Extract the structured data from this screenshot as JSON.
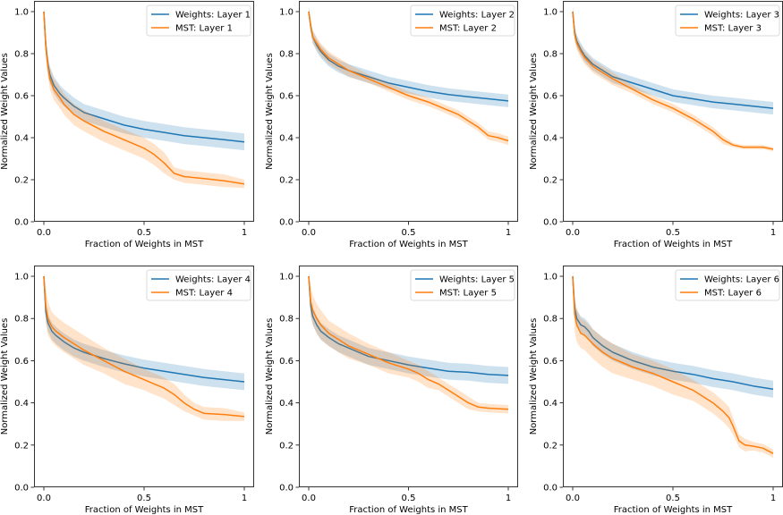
{
  "colors": {
    "weights": "#1f77b4",
    "mst": "#ff7f0e"
  },
  "chart_data": [
    {
      "type": "line",
      "xlabel": "Fraction of Weights in MST",
      "ylabel": "Normalized Weight Values",
      "xlim": [
        0,
        1
      ],
      "ylim": [
        0,
        1
      ],
      "xticks": [
        0,
        0.5,
        1
      ],
      "xtick_labels": [
        "0.0",
        "0.5",
        "1"
      ],
      "yticks": [
        0,
        0.2,
        0.4,
        0.6,
        0.8,
        1.0
      ],
      "ytick_labels": [
        "0.0",
        "0.2",
        "0.4",
        "0.6",
        "0.8",
        "1.0"
      ],
      "legend_position": "top-right",
      "series": [
        {
          "name": "Weights: Layer 1",
          "color_key": "weights",
          "x": [
            0,
            0.01,
            0.02,
            0.03,
            0.05,
            0.08,
            0.1,
            0.15,
            0.2,
            0.3,
            0.4,
            0.5,
            0.6,
            0.7,
            0.8,
            0.9,
            1.0
          ],
          "y": [
            1.0,
            0.84,
            0.75,
            0.7,
            0.65,
            0.61,
            0.59,
            0.55,
            0.52,
            0.49,
            0.46,
            0.44,
            0.425,
            0.41,
            0.4,
            0.39,
            0.38
          ],
          "band": [
            0.02,
            0.04,
            0.04,
            0.04,
            0.04,
            0.04,
            0.04,
            0.04,
            0.04,
            0.04,
            0.04,
            0.04,
            0.04,
            0.04,
            0.04,
            0.04,
            0.04
          ]
        },
        {
          "name": "MST: Layer 1",
          "color_key": "mst",
          "x": [
            0,
            0.01,
            0.02,
            0.03,
            0.05,
            0.08,
            0.1,
            0.15,
            0.2,
            0.3,
            0.4,
            0.5,
            0.55,
            0.6,
            0.65,
            0.7,
            0.8,
            0.9,
            1.0
          ],
          "y": [
            1.0,
            0.83,
            0.74,
            0.68,
            0.63,
            0.59,
            0.56,
            0.51,
            0.48,
            0.43,
            0.39,
            0.35,
            0.32,
            0.28,
            0.23,
            0.215,
            0.205,
            0.195,
            0.18
          ],
          "band": [
            0.02,
            0.05,
            0.05,
            0.05,
            0.05,
            0.05,
            0.05,
            0.05,
            0.05,
            0.05,
            0.05,
            0.05,
            0.05,
            0.05,
            0.03,
            0.03,
            0.03,
            0.03,
            0.02
          ]
        }
      ]
    },
    {
      "type": "line",
      "xlabel": "Fraction of Weights in MST",
      "ylabel": "Normalized Weight Values",
      "xlim": [
        0,
        1
      ],
      "ylim": [
        0,
        1
      ],
      "xticks": [
        0,
        0.5,
        1
      ],
      "xtick_labels": [
        "0.0",
        "0.5",
        "1"
      ],
      "yticks": [
        0,
        0.2,
        0.4,
        0.6,
        0.8,
        1.0
      ],
      "ytick_labels": [
        "0.0",
        "0.2",
        "0.4",
        "0.6",
        "0.8",
        "1.0"
      ],
      "legend_position": "top-right",
      "series": [
        {
          "name": "Weights: Layer 2",
          "color_key": "weights",
          "x": [
            0,
            0.01,
            0.02,
            0.04,
            0.06,
            0.1,
            0.15,
            0.2,
            0.3,
            0.4,
            0.5,
            0.6,
            0.7,
            0.8,
            0.9,
            1.0
          ],
          "y": [
            1.0,
            0.93,
            0.88,
            0.84,
            0.81,
            0.77,
            0.74,
            0.72,
            0.69,
            0.66,
            0.64,
            0.62,
            0.605,
            0.595,
            0.585,
            0.575
          ],
          "band": [
            0.02,
            0.03,
            0.03,
            0.03,
            0.03,
            0.03,
            0.03,
            0.03,
            0.03,
            0.03,
            0.03,
            0.03,
            0.03,
            0.03,
            0.03,
            0.03
          ]
        },
        {
          "name": "MST: Layer 2",
          "color_key": "mst",
          "x": [
            0,
            0.01,
            0.02,
            0.04,
            0.06,
            0.1,
            0.15,
            0.2,
            0.3,
            0.4,
            0.5,
            0.6,
            0.65,
            0.7,
            0.75,
            0.8,
            0.85,
            0.9,
            0.95,
            1.0
          ],
          "y": [
            1.0,
            0.93,
            0.88,
            0.85,
            0.82,
            0.78,
            0.75,
            0.72,
            0.68,
            0.64,
            0.6,
            0.57,
            0.55,
            0.53,
            0.51,
            0.48,
            0.45,
            0.41,
            0.4,
            0.385
          ],
          "band": [
            0.02,
            0.03,
            0.03,
            0.03,
            0.03,
            0.03,
            0.03,
            0.03,
            0.02,
            0.02,
            0.02,
            0.02,
            0.02,
            0.02,
            0.02,
            0.02,
            0.02,
            0.02,
            0.02,
            0.02
          ]
        }
      ]
    },
    {
      "type": "line",
      "xlabel": "Fraction of Weights in MST",
      "ylabel": "Normalized Weight Values",
      "xlim": [
        0,
        1
      ],
      "ylim": [
        0,
        1
      ],
      "xticks": [
        0,
        0.5,
        1
      ],
      "xtick_labels": [
        "0.0",
        "0.5",
        "1"
      ],
      "yticks": [
        0,
        0.2,
        0.4,
        0.6,
        0.8,
        1.0
      ],
      "ytick_labels": [
        "0.0",
        "0.2",
        "0.4",
        "0.6",
        "0.8",
        "1.0"
      ],
      "legend_position": "top-right",
      "series": [
        {
          "name": "Weights: Layer 3",
          "color_key": "weights",
          "x": [
            0,
            0.01,
            0.02,
            0.04,
            0.06,
            0.1,
            0.15,
            0.2,
            0.3,
            0.4,
            0.5,
            0.6,
            0.7,
            0.8,
            0.9,
            1.0
          ],
          "y": [
            1.0,
            0.9,
            0.86,
            0.82,
            0.79,
            0.75,
            0.72,
            0.69,
            0.66,
            0.63,
            0.6,
            0.585,
            0.57,
            0.56,
            0.55,
            0.54
          ],
          "band": [
            0.02,
            0.03,
            0.03,
            0.03,
            0.03,
            0.03,
            0.03,
            0.03,
            0.03,
            0.03,
            0.03,
            0.03,
            0.03,
            0.03,
            0.03,
            0.03
          ]
        },
        {
          "name": "MST: Layer 3",
          "color_key": "mst",
          "x": [
            0,
            0.01,
            0.02,
            0.04,
            0.06,
            0.1,
            0.15,
            0.2,
            0.3,
            0.4,
            0.5,
            0.6,
            0.65,
            0.7,
            0.75,
            0.8,
            0.85,
            0.9,
            0.95,
            1.0
          ],
          "y": [
            1.0,
            0.89,
            0.85,
            0.81,
            0.78,
            0.74,
            0.71,
            0.68,
            0.63,
            0.58,
            0.54,
            0.49,
            0.46,
            0.43,
            0.39,
            0.365,
            0.355,
            0.355,
            0.355,
            0.345
          ],
          "band": [
            0.02,
            0.03,
            0.03,
            0.03,
            0.03,
            0.03,
            0.03,
            0.03,
            0.02,
            0.02,
            0.02,
            0.02,
            0.02,
            0.02,
            0.02,
            0.01,
            0.01,
            0.01,
            0.01,
            0.01
          ]
        }
      ]
    },
    {
      "type": "line",
      "xlabel": "Fraction of Weights in MST",
      "ylabel": "Normalized Weight Values",
      "xlim": [
        0,
        1
      ],
      "ylim": [
        0,
        1
      ],
      "xticks": [
        0,
        0.5,
        1
      ],
      "xtick_labels": [
        "0.0",
        "0.5",
        "1"
      ],
      "yticks": [
        0,
        0.2,
        0.4,
        0.6,
        0.8,
        1.0
      ],
      "ytick_labels": [
        "0.0",
        "0.2",
        "0.4",
        "0.6",
        "0.8",
        "1.0"
      ],
      "legend_position": "top-right",
      "series": [
        {
          "name": "Weights: Layer 4",
          "color_key": "weights",
          "x": [
            0,
            0.01,
            0.02,
            0.04,
            0.06,
            0.1,
            0.15,
            0.2,
            0.3,
            0.4,
            0.5,
            0.6,
            0.7,
            0.8,
            0.9,
            1.0
          ],
          "y": [
            1.0,
            0.83,
            0.78,
            0.74,
            0.72,
            0.69,
            0.66,
            0.64,
            0.61,
            0.585,
            0.565,
            0.55,
            0.535,
            0.52,
            0.51,
            0.5
          ],
          "band": [
            0.02,
            0.04,
            0.04,
            0.04,
            0.04,
            0.04,
            0.04,
            0.04,
            0.04,
            0.04,
            0.04,
            0.04,
            0.04,
            0.04,
            0.04,
            0.04
          ]
        },
        {
          "name": "MST: Layer 4",
          "color_key": "mst",
          "x": [
            0,
            0.01,
            0.02,
            0.04,
            0.06,
            0.1,
            0.15,
            0.2,
            0.3,
            0.4,
            0.5,
            0.55,
            0.6,
            0.65,
            0.7,
            0.75,
            0.8,
            0.9,
            1.0
          ],
          "y": [
            1.0,
            0.86,
            0.8,
            0.76,
            0.74,
            0.71,
            0.68,
            0.65,
            0.6,
            0.55,
            0.51,
            0.49,
            0.47,
            0.44,
            0.4,
            0.37,
            0.35,
            0.345,
            0.335
          ],
          "band": [
            0.02,
            0.08,
            0.08,
            0.07,
            0.07,
            0.07,
            0.07,
            0.07,
            0.06,
            0.06,
            0.05,
            0.05,
            0.05,
            0.05,
            0.04,
            0.03,
            0.03,
            0.03,
            0.02
          ]
        }
      ]
    },
    {
      "type": "line",
      "xlabel": "Fraction of Weights in MST",
      "ylabel": "Normalized Weight Values",
      "xlim": [
        0,
        1
      ],
      "ylim": [
        0,
        1
      ],
      "xticks": [
        0,
        0.5,
        1
      ],
      "xtick_labels": [
        "0.0",
        "0.5",
        "1"
      ],
      "yticks": [
        0,
        0.2,
        0.4,
        0.6,
        0.8,
        1.0
      ],
      "ytick_labels": [
        "0.0",
        "0.2",
        "0.4",
        "0.6",
        "0.8",
        "1.0"
      ],
      "legend_position": "top-right",
      "series": [
        {
          "name": "Weights: Layer 5",
          "color_key": "weights",
          "x": [
            0,
            0.01,
            0.02,
            0.04,
            0.06,
            0.1,
            0.15,
            0.2,
            0.3,
            0.4,
            0.5,
            0.6,
            0.7,
            0.8,
            0.9,
            1.0
          ],
          "y": [
            1.0,
            0.86,
            0.81,
            0.77,
            0.74,
            0.71,
            0.68,
            0.66,
            0.62,
            0.6,
            0.58,
            0.565,
            0.55,
            0.545,
            0.535,
            0.53
          ],
          "band": [
            0.02,
            0.04,
            0.04,
            0.04,
            0.04,
            0.04,
            0.04,
            0.04,
            0.04,
            0.04,
            0.04,
            0.04,
            0.04,
            0.04,
            0.04,
            0.04
          ]
        },
        {
          "name": "MST: Layer 5",
          "color_key": "mst",
          "x": [
            0,
            0.01,
            0.02,
            0.04,
            0.06,
            0.1,
            0.15,
            0.2,
            0.3,
            0.4,
            0.5,
            0.55,
            0.6,
            0.65,
            0.7,
            0.75,
            0.8,
            0.85,
            0.9,
            1.0
          ],
          "y": [
            1.0,
            0.88,
            0.84,
            0.8,
            0.77,
            0.73,
            0.7,
            0.67,
            0.63,
            0.59,
            0.56,
            0.54,
            0.51,
            0.49,
            0.46,
            0.43,
            0.4,
            0.38,
            0.375,
            0.37
          ],
          "band": [
            0.02,
            0.07,
            0.07,
            0.07,
            0.07,
            0.06,
            0.06,
            0.06,
            0.05,
            0.05,
            0.04,
            0.04,
            0.04,
            0.03,
            0.03,
            0.03,
            0.03,
            0.02,
            0.02,
            0.02
          ]
        }
      ]
    },
    {
      "type": "line",
      "xlabel": "Fraction of Weights in MST",
      "ylabel": "Normalized Weight Values",
      "xlim": [
        0,
        1
      ],
      "ylim": [
        0,
        1
      ],
      "xticks": [
        0,
        0.5,
        1
      ],
      "xtick_labels": [
        "0.0",
        "0.5",
        "1"
      ],
      "yticks": [
        0,
        0.2,
        0.4,
        0.6,
        0.8,
        1.0
      ],
      "ytick_labels": [
        "0.0",
        "0.2",
        "0.4",
        "0.6",
        "0.8",
        "1.0"
      ],
      "legend_position": "top-right",
      "series": [
        {
          "name": "Weights: Layer 6",
          "color_key": "weights",
          "x": [
            0,
            0.01,
            0.02,
            0.04,
            0.06,
            0.08,
            0.1,
            0.15,
            0.2,
            0.3,
            0.4,
            0.5,
            0.6,
            0.7,
            0.8,
            0.9,
            1.0
          ],
          "y": [
            1.0,
            0.85,
            0.8,
            0.77,
            0.76,
            0.74,
            0.71,
            0.67,
            0.64,
            0.6,
            0.57,
            0.55,
            0.535,
            0.515,
            0.5,
            0.48,
            0.465
          ],
          "band": [
            0.02,
            0.04,
            0.04,
            0.04,
            0.04,
            0.04,
            0.04,
            0.04,
            0.04,
            0.04,
            0.04,
            0.04,
            0.04,
            0.04,
            0.04,
            0.04,
            0.04
          ]
        },
        {
          "name": "MST: Layer 6",
          "color_key": "mst",
          "x": [
            0,
            0.01,
            0.02,
            0.04,
            0.06,
            0.1,
            0.15,
            0.2,
            0.3,
            0.4,
            0.5,
            0.6,
            0.65,
            0.7,
            0.75,
            0.78,
            0.8,
            0.83,
            0.86,
            0.9,
            0.95,
            1.0
          ],
          "y": [
            1.0,
            0.82,
            0.77,
            0.73,
            0.72,
            0.68,
            0.64,
            0.61,
            0.57,
            0.54,
            0.5,
            0.46,
            0.43,
            0.4,
            0.36,
            0.33,
            0.29,
            0.22,
            0.2,
            0.195,
            0.185,
            0.16
          ],
          "band": [
            0.02,
            0.08,
            0.08,
            0.07,
            0.07,
            0.07,
            0.07,
            0.07,
            0.06,
            0.06,
            0.06,
            0.05,
            0.05,
            0.05,
            0.05,
            0.05,
            0.04,
            0.03,
            0.03,
            0.02,
            0.02,
            0.02
          ]
        }
      ]
    }
  ]
}
